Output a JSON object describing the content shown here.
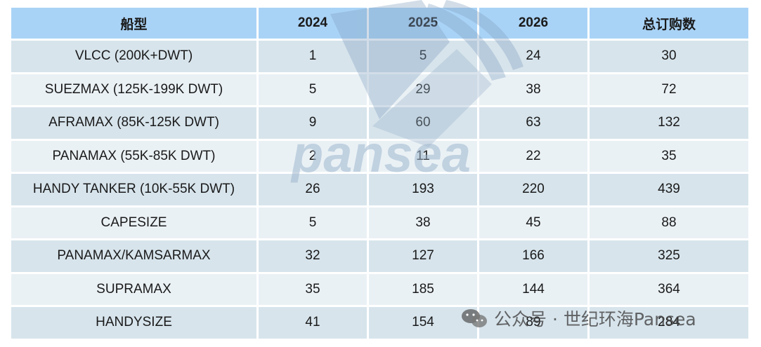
{
  "chart_data": {
    "type": "table",
    "columns": [
      "船型",
      "2024",
      "2025",
      "2026",
      "总订购数"
    ],
    "rows": [
      [
        "VLCC (200K+DWT)",
        "1",
        "5",
        "24",
        "30"
      ],
      [
        "SUEZMAX (125K-199K DWT)",
        "5",
        "29",
        "38",
        "72"
      ],
      [
        "AFRAMAX (85K-125K DWT)",
        "9",
        "60",
        "63",
        "132"
      ],
      [
        "PANAMAX (55K-85K DWT)",
        "2",
        "11",
        "22",
        "35"
      ],
      [
        "HANDY TANKER (10K-55K DWT)",
        "26",
        "193",
        "220",
        "439"
      ],
      [
        "CAPESIZE",
        "5",
        "38",
        "45",
        "88"
      ],
      [
        "PANAMAX/KAMSARMAX",
        "32",
        "127",
        "166",
        "325"
      ],
      [
        "SUPRAMAX",
        "35",
        "185",
        "144",
        "364"
      ],
      [
        "HANDYSIZE",
        "41",
        "154",
        "89",
        "284"
      ]
    ]
  },
  "watermark": {
    "logo_text": "pansea",
    "caption": "公众号 · 世纪环海Pansea",
    "icon": "wechat-icon"
  },
  "colors": {
    "header_bg": "#a9d3f6",
    "row_odd_bg": "#d7e4ec",
    "row_even_bg": "#eaf1f5",
    "watermark": "#9fb7cf"
  }
}
